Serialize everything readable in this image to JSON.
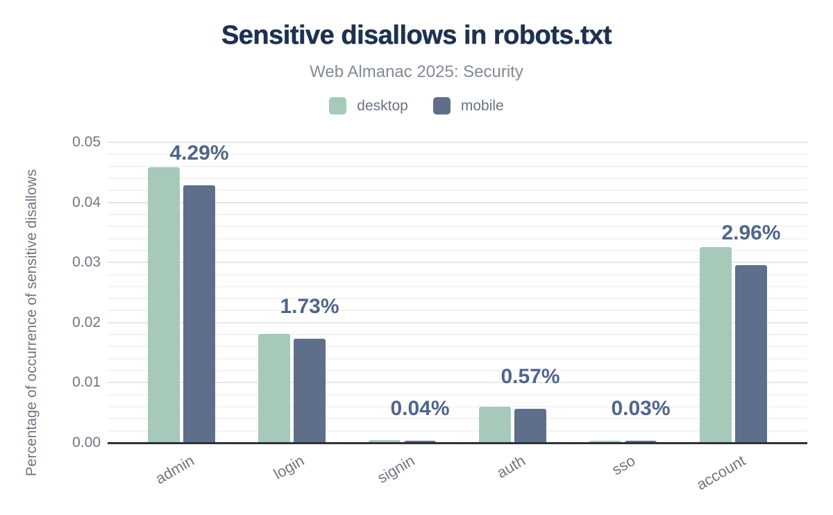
{
  "chart_data": {
    "type": "bar",
    "title": "Sensitive disallows in robots.txt",
    "subtitle": "Web Almanac 2025: Security",
    "categories": [
      "admin",
      "login",
      "signin",
      "auth",
      "sso",
      "account"
    ],
    "series": [
      {
        "name": "desktop",
        "color": "#a6c9ba",
        "values": [
          0.0459,
          0.0181,
          0.0005,
          0.006,
          0.0003,
          0.0326
        ]
      },
      {
        "name": "mobile",
        "color": "#5f6e8a",
        "values": [
          0.0429,
          0.0173,
          0.0004,
          0.0057,
          0.0003,
          0.0296
        ]
      }
    ],
    "data_labels": {
      "series": "mobile",
      "values": [
        "4.29%",
        "1.73%",
        "0.04%",
        "0.57%",
        "0.03%",
        "2.96%"
      ]
    },
    "xlabel": "",
    "ylabel": "Percentage of occurrence of sensitive disallows",
    "ylim": [
      0,
      0.05
    ],
    "yticks": [
      {
        "value": 0.0,
        "label": "0.00"
      },
      {
        "value": 0.01,
        "label": "0.01"
      },
      {
        "value": 0.02,
        "label": "0.02"
      },
      {
        "value": 0.03,
        "label": "0.03"
      },
      {
        "value": 0.04,
        "label": "0.04"
      },
      {
        "value": 0.05,
        "label": "0.05"
      }
    ],
    "minor_tick_step": 0.002,
    "grid": "horizontal major+minor",
    "legend_position": "top center",
    "x_label_rotation_deg": -30
  },
  "colors": {
    "title": "#1e3150",
    "subtitle": "#828a95",
    "legend_text": "#6a7280",
    "axis_text": "#6e7582",
    "x_axis_text": "#71777f",
    "data_label": "#506689",
    "grid_major": "#e6e6e6",
    "grid_minor": "#f3f3f3",
    "axis_line": "#2e3135",
    "background": "#ffffff",
    "desktop": "#a6c9ba",
    "mobile": "#5f6e8a"
  }
}
